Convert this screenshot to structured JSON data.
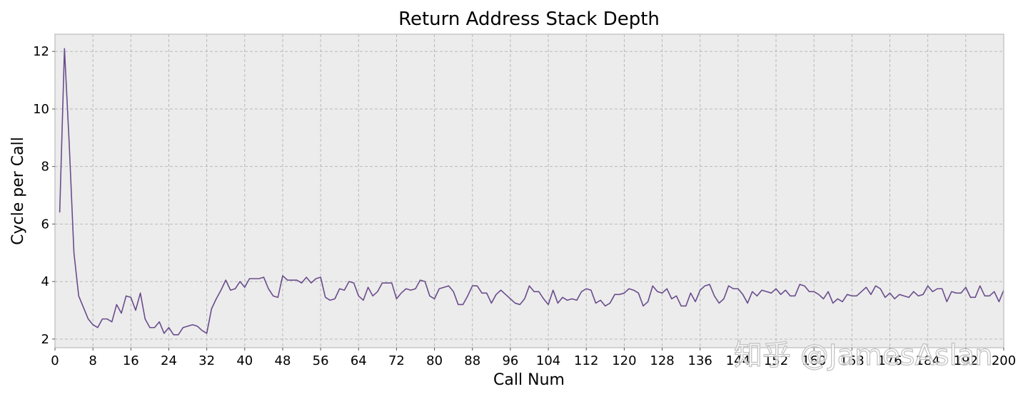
{
  "chart_data": {
    "type": "line",
    "title": "Return Address Stack Depth",
    "xlabel": "Call Num",
    "ylabel": "Cycle per Call",
    "xlim": [
      0,
      200
    ],
    "ylim": [
      1.7,
      12.6
    ],
    "x_ticks": [
      0,
      8,
      16,
      24,
      32,
      40,
      48,
      56,
      64,
      72,
      80,
      88,
      96,
      104,
      112,
      120,
      128,
      136,
      144,
      152,
      160,
      168,
      176,
      184,
      192,
      200
    ],
    "y_ticks": [
      2,
      4,
      6,
      8,
      10,
      12
    ],
    "grid": true,
    "series_color": "#6a4c8c",
    "background": "#ececec",
    "x": [
      1,
      2,
      3,
      4,
      5,
      6,
      7,
      8,
      9,
      10,
      11,
      12,
      13,
      14,
      15,
      16,
      17,
      18,
      19,
      20,
      21,
      22,
      23,
      24,
      25,
      26,
      27,
      28,
      29,
      30,
      31,
      32,
      33,
      34,
      35,
      36,
      37,
      38,
      39,
      40,
      41,
      42,
      43,
      44,
      45,
      46,
      47,
      48,
      49,
      50,
      51,
      52,
      53,
      54,
      55,
      56,
      57,
      58,
      59,
      60,
      61,
      62,
      63,
      64,
      65,
      66,
      67,
      68,
      69,
      70,
      71,
      72,
      73,
      74,
      75,
      76,
      77,
      78,
      79,
      80,
      81,
      82,
      83,
      84,
      85,
      86,
      87,
      88,
      89,
      90,
      91,
      92,
      93,
      94,
      95,
      96,
      97,
      98,
      99,
      100,
      101,
      102,
      103,
      104,
      105,
      106,
      107,
      108,
      109,
      110,
      111,
      112,
      113,
      114,
      115,
      116,
      117,
      118,
      119,
      120,
      121,
      122,
      123,
      124,
      125,
      126,
      127,
      128,
      129,
      130,
      131,
      132,
      133,
      134,
      135,
      136,
      137,
      138,
      139,
      140,
      141,
      142,
      143,
      144,
      145,
      146,
      147,
      148,
      149,
      150,
      151,
      152,
      153,
      154,
      155,
      156,
      157,
      158,
      159,
      160,
      161,
      162,
      163,
      164,
      165,
      166,
      167,
      168,
      169,
      170,
      171,
      172,
      173,
      174,
      175,
      176,
      177,
      178,
      179,
      180,
      181,
      182,
      183,
      184,
      185,
      186,
      187,
      188,
      189,
      190,
      191,
      192,
      193,
      194,
      195,
      196,
      197,
      198,
      199,
      200
    ],
    "y": [
      6.4,
      12.1,
      8.8,
      5.0,
      3.5,
      3.1,
      2.7,
      2.5,
      2.4,
      2.7,
      2.7,
      2.6,
      3.2,
      2.9,
      3.5,
      3.45,
      3.0,
      3.6,
      2.7,
      2.4,
      2.4,
      2.6,
      2.2,
      2.4,
      2.15,
      2.15,
      2.4,
      2.45,
      2.5,
      2.45,
      2.3,
      2.2,
      3.05,
      3.4,
      3.7,
      4.05,
      3.7,
      3.75,
      4.0,
      3.8,
      4.1,
      4.1,
      4.1,
      4.15,
      3.75,
      3.5,
      3.45,
      4.2,
      4.05,
      4.05,
      4.05,
      3.95,
      4.15,
      3.95,
      4.1,
      4.15,
      3.45,
      3.35,
      3.4,
      3.75,
      3.7,
      4.0,
      3.95,
      3.5,
      3.35,
      3.8,
      3.5,
      3.65,
      3.95,
      3.95,
      3.95,
      3.4,
      3.6,
      3.75,
      3.7,
      3.75,
      4.05,
      4.0,
      3.5,
      3.4,
      3.75,
      3.8,
      3.85,
      3.65,
      3.2,
      3.2,
      3.5,
      3.85,
      3.85,
      3.6,
      3.6,
      3.25,
      3.55,
      3.7,
      3.55,
      3.4,
      3.25,
      3.2,
      3.4,
      3.85,
      3.65,
      3.65,
      3.4,
      3.2,
      3.7,
      3.25,
      3.45,
      3.35,
      3.4,
      3.35,
      3.65,
      3.75,
      3.7,
      3.25,
      3.35,
      3.15,
      3.25,
      3.55,
      3.55,
      3.6,
      3.75,
      3.7,
      3.6,
      3.15,
      3.3,
      3.85,
      3.65,
      3.6,
      3.75,
      3.4,
      3.5,
      3.15,
      3.15,
      3.6,
      3.3,
      3.7,
      3.85,
      3.9,
      3.5,
      3.25,
      3.4,
      3.85,
      3.75,
      3.75,
      3.55,
      3.25,
      3.65,
      3.5,
      3.7,
      3.65,
      3.6,
      3.75,
      3.55,
      3.7,
      3.5,
      3.5,
      3.9,
      3.85,
      3.65,
      3.65,
      3.55,
      3.4,
      3.65,
      3.25,
      3.4,
      3.3,
      3.55,
      3.5,
      3.5,
      3.65,
      3.8,
      3.55,
      3.85,
      3.75,
      3.45,
      3.6,
      3.4,
      3.55,
      3.5,
      3.45,
      3.65,
      3.5,
      3.55,
      3.85,
      3.65,
      3.75,
      3.75,
      3.3,
      3.65,
      3.6,
      3.6,
      3.8,
      3.45,
      3.45,
      3.85,
      3.5,
      3.5,
      3.65,
      3.3,
      3.7
    ]
  },
  "watermark": "知乎 @JamesAslan"
}
